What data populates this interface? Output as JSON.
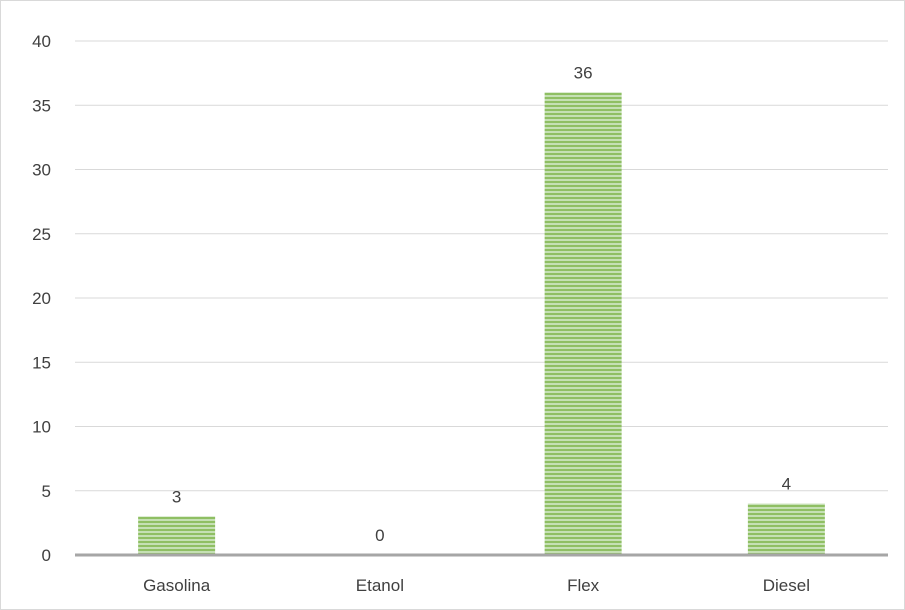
{
  "chart_data": {
    "type": "bar",
    "title": "",
    "xlabel": "",
    "ylabel": "",
    "categories": [
      "Gasolina",
      "Etanol",
      "Flex",
      "Diesel"
    ],
    "values": [
      3,
      0,
      36,
      4
    ],
    "data_labels": [
      "3",
      "0",
      "36",
      "4"
    ],
    "ylim": [
      0,
      40
    ],
    "yticks": [
      0,
      5,
      10,
      15,
      20,
      25,
      30,
      35,
      40
    ],
    "grid": true,
    "legend": "none"
  },
  "colors": {
    "bar_fill": "#a9d18e",
    "bar_stripe": "#70ad47",
    "gridline": "#d9d9d9",
    "axis_line": "#a6a6a6",
    "text": "#404040"
  }
}
